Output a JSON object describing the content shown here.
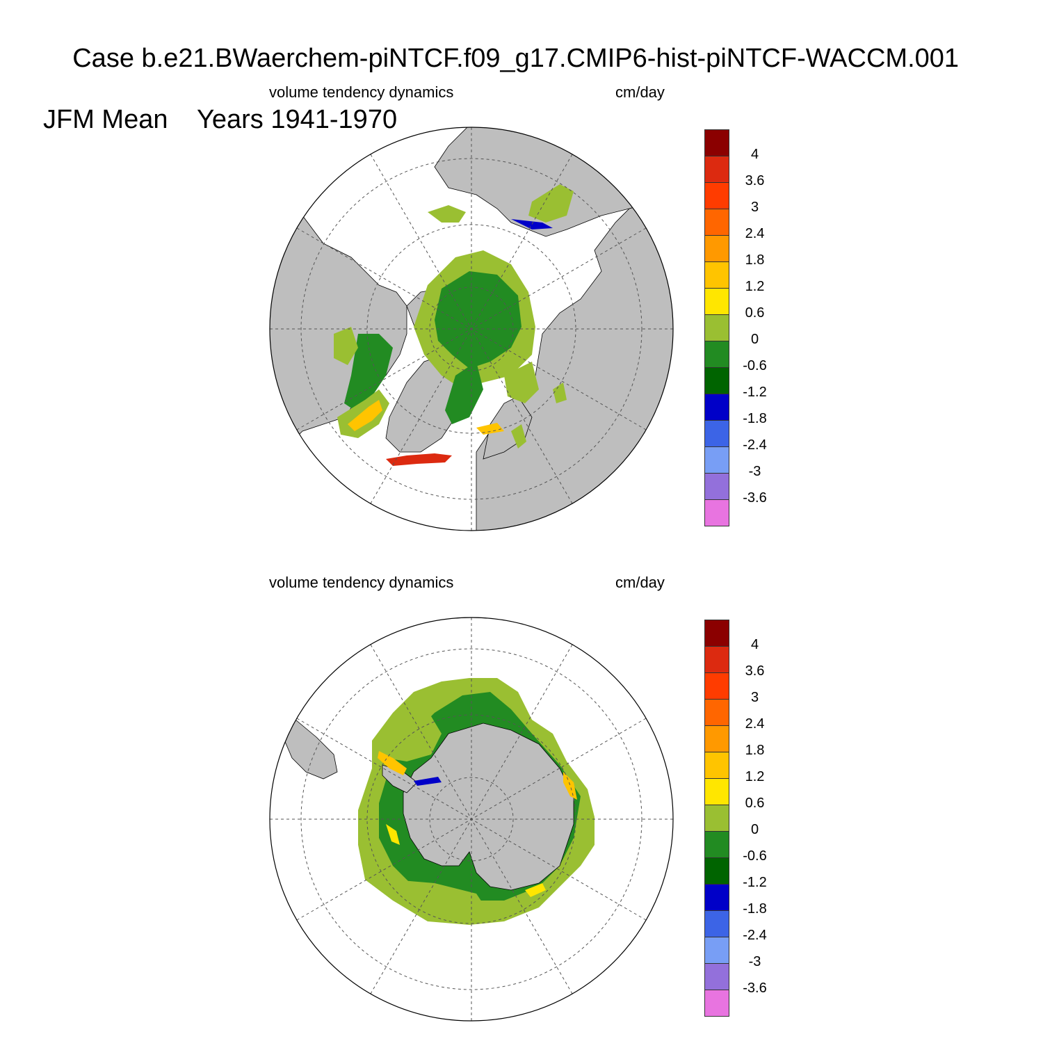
{
  "title": {
    "line1": "  Case b.e21.BWaerchem-piNTCF.f09_g17.CMIP6-hist-piNTCF-WACCM.001",
    "line2": "JFM Mean    Years 1941-1970"
  },
  "panels": [
    {
      "id": "north",
      "left_title": "volume tendency dynamics",
      "right_title": "cm/day",
      "hemisphere": "north-polar-stereographic"
    },
    {
      "id": "south",
      "left_title": "volume tendency dynamics",
      "right_title": "cm/day",
      "hemisphere": "south-polar-stereographic"
    }
  ],
  "colorbar": {
    "colors": [
      "#8b0000",
      "#dc2a10",
      "#ff3c00",
      "#ff6600",
      "#ff9900",
      "#ffc400",
      "#ffe600",
      "#9abf32",
      "#228b22",
      "#006400",
      "#0000c8",
      "#3c64e6",
      "#789ef5",
      "#9370db",
      "#e874e0"
    ],
    "labels": [
      "4",
      "3.6",
      "3",
      "2.4",
      "1.8",
      "1.2",
      "0.6",
      "0",
      "-0.6",
      "-1.2",
      "-1.8",
      "-2.4",
      "-3",
      "-3.6"
    ]
  },
  "map_colors": {
    "land": "#bebebe",
    "ocean": "#ffffff",
    "grid": "#555555"
  }
}
